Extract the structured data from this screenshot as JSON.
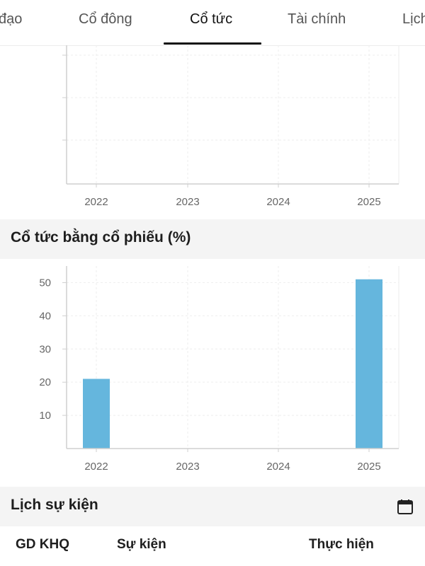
{
  "tabs": [
    {
      "label": "đạo"
    },
    {
      "label": "Cổ đông"
    },
    {
      "label": "Cổ tức",
      "active": true
    },
    {
      "label": "Tài chính"
    },
    {
      "label": "Lịch"
    }
  ],
  "accent_color": "#111111",
  "bar_color": "#65b6dd",
  "section_stock_dividend": {
    "title": "Cổ tức bằng cổ phiếu (%)"
  },
  "section_events": {
    "title": "Lịch sự kiện"
  },
  "events_table": {
    "columns": [
      "GD KHQ",
      "Sự kiện",
      "Thực hiện"
    ]
  },
  "chart_data": [
    {
      "type": "bar",
      "categories": [
        "2022",
        "2023",
        "2024",
        "2025"
      ],
      "values": [
        null,
        null,
        null,
        null
      ],
      "grid": true
    },
    {
      "type": "bar",
      "categories": [
        "2022",
        "2023",
        "2024",
        "2025"
      ],
      "values": [
        21,
        0,
        0,
        51
      ],
      "ylim": [
        0,
        55
      ],
      "yticks": [
        10,
        20,
        30,
        40,
        50
      ],
      "grid": true
    }
  ]
}
